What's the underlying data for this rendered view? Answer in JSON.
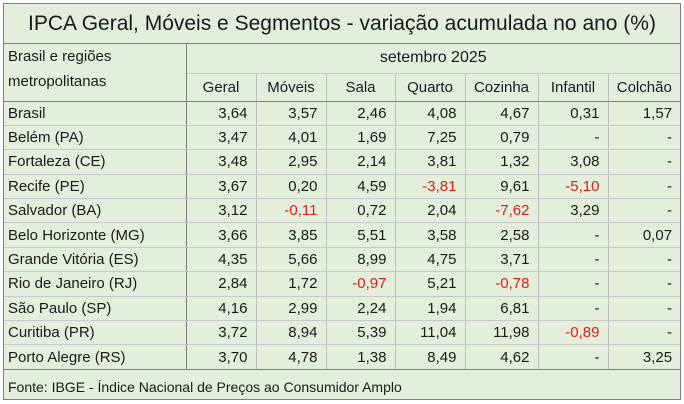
{
  "title": "IPCA Geral, Móveis e Segmentos - variação acumulada no ano (%)",
  "region_header": "Brasil e regiões metropolitanas",
  "period": "setembro 2025",
  "columns": [
    "Geral",
    "Móveis",
    "Sala",
    "Quarto",
    "Cozinha",
    "Infantil",
    "Colchão"
  ],
  "rows": [
    {
      "region": "Brasil",
      "values": [
        "3,64",
        "3,57",
        "2,46",
        "4,08",
        "4,67",
        "0,31",
        "1,57"
      ]
    },
    {
      "region": "Belém (PA)",
      "values": [
        "3,47",
        "4,01",
        "1,69",
        "7,25",
        "0,79",
        "-",
        "-"
      ]
    },
    {
      "region": "Fortaleza (CE)",
      "values": [
        "3,48",
        "2,95",
        "2,14",
        "3,81",
        "1,32",
        "3,08",
        "-"
      ]
    },
    {
      "region": "Recife (PE)",
      "values": [
        "3,67",
        "0,20",
        "4,59",
        "-3,81",
        "9,61",
        "-5,10",
        "-"
      ]
    },
    {
      "region": "Salvador (BA)",
      "values": [
        "3,12",
        "-0,11",
        "0,72",
        "2,04",
        "-7,62",
        "3,29",
        "-"
      ]
    },
    {
      "region": "Belo Horizonte (MG)",
      "values": [
        "3,66",
        "3,85",
        "5,51",
        "3,58",
        "2,58",
        "-",
        "0,07"
      ]
    },
    {
      "region": "Grande Vitória (ES)",
      "values": [
        "4,35",
        "5,66",
        "8,99",
        "4,75",
        "3,71",
        "-",
        "-"
      ]
    },
    {
      "region": "Rio de Janeiro (RJ)",
      "values": [
        "2,84",
        "1,72",
        "-0,97",
        "5,21",
        "-0,78",
        "-",
        "-"
      ]
    },
    {
      "region": "São Paulo (SP)",
      "values": [
        "4,16",
        "2,99",
        "2,24",
        "1,94",
        "6,81",
        "-",
        "-"
      ]
    },
    {
      "region": "Curitiba (PR)",
      "values": [
        "3,72",
        "8,94",
        "5,39",
        "11,04",
        "11,98",
        "-0,89",
        "-"
      ]
    },
    {
      "region": "Porto Alegre (RS)",
      "values": [
        "3,70",
        "4,78",
        "1,38",
        "8,49",
        "4,62",
        "-",
        "3,25"
      ]
    }
  ],
  "source": "Fonte: IBGE - Índice Nacional de Preços ao Consumidor Amplo",
  "colors": {
    "background": "#e3efda",
    "negative": "#e31b1b",
    "text": "#1a1a1a"
  }
}
